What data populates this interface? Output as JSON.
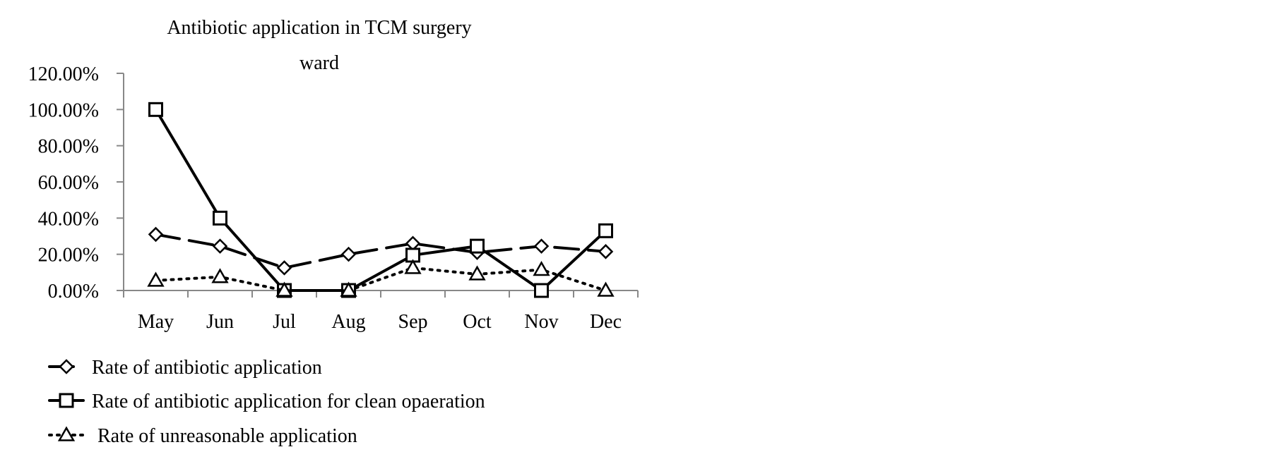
{
  "chart_data": {
    "type": "line",
    "title_lines": [
      "Antibiotic application in TCM surgery",
      "ward"
    ],
    "categories": [
      "May",
      "Jun",
      "Jul",
      "Aug",
      "Sep",
      "Oct",
      "Nov",
      "Dec"
    ],
    "ylim": [
      0,
      120
    ],
    "y_ticks": [
      0,
      20,
      40,
      60,
      80,
      100,
      120
    ],
    "y_tick_labels": [
      "0.00%",
      "20.00%",
      "40.00%",
      "60.00%",
      "80.00%",
      "100.00%",
      "120.00%"
    ],
    "grid": false,
    "legend_position": "bottom-left",
    "series": [
      {
        "name": "Rate of antibiotic application",
        "marker": "diamond",
        "line_style": "long-dash",
        "values": [
          31,
          24.5,
          12.5,
          20,
          26,
          21,
          24.5,
          21.5
        ]
      },
      {
        "name": "Rate of antibiotic application for clean opaeration",
        "marker": "square",
        "line_style": "solid",
        "values": [
          100,
          40,
          0,
          0,
          19.5,
          24.5,
          0,
          33
        ]
      },
      {
        "name": "Rate of unreasonable application",
        "marker": "triangle",
        "line_style": "dotted",
        "values": [
          5.5,
          7.5,
          0,
          0,
          12.5,
          9,
          11.5,
          0
        ]
      }
    ]
  }
}
